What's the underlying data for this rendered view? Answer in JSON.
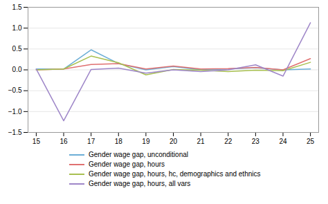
{
  "chart_data": {
    "type": "line",
    "x": [
      15,
      16,
      17,
      18,
      19,
      20,
      21,
      22,
      23,
      24,
      25
    ],
    "series": [
      {
        "name": "Gender wage gap, unconditional",
        "color": "#6BAED6",
        "values": [
          0.02,
          0.02,
          0.48,
          0.15,
          0.0,
          0.08,
          0.0,
          0.02,
          0.05,
          0.0,
          0.02
        ]
      },
      {
        "name": "Gender wage gap, hours",
        "color": "#E07070",
        "values": [
          0.0,
          0.02,
          0.13,
          0.15,
          0.02,
          0.09,
          0.02,
          0.03,
          0.06,
          0.0,
          0.27
        ]
      },
      {
        "name": "Gender wage gap, hours, hc, demographics and ethnics",
        "color": "#A8C050",
        "values": [
          0.0,
          0.02,
          0.33,
          0.17,
          -0.12,
          0.01,
          -0.01,
          -0.04,
          -0.01,
          -0.02,
          0.18
        ]
      },
      {
        "name": "Gender wage gap, hours, all vars",
        "color": "#9E86C8",
        "values": [
          0.02,
          -1.22,
          0.01,
          0.04,
          -0.08,
          0.0,
          -0.04,
          0.0,
          0.12,
          -0.15,
          1.13
        ]
      }
    ],
    "xlim": [
      14.7,
      25.3
    ],
    "xticks": [
      15,
      16,
      17,
      18,
      19,
      20,
      21,
      22,
      23,
      24,
      25
    ],
    "ylim": [
      -1.5,
      1.5
    ],
    "yticks": [
      {
        "value": -1.5,
        "label": "−1.5"
      },
      {
        "value": -1.0,
        "label": "−1.0"
      },
      {
        "value": -0.5,
        "label": "−0.5"
      },
      {
        "value": 0.0,
        "label": "0.0"
      },
      {
        "value": 0.5,
        "label": "0.5"
      },
      {
        "value": 1.0,
        "label": "1.0"
      },
      {
        "value": 1.5,
        "label": "1.5"
      }
    ],
    "grid": "y",
    "legend": "bottom"
  }
}
